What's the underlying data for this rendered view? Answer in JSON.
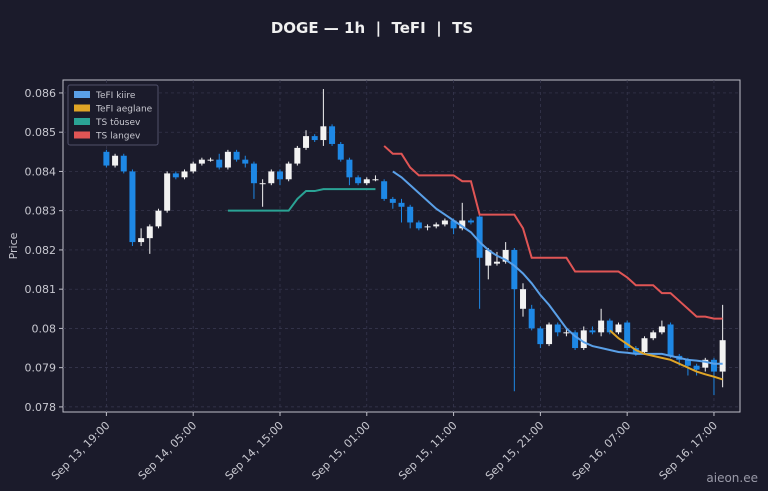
{
  "chart_data": {
    "type": "candlestick",
    "title": "DOGE — 1h  |  TeFI  |  TS",
    "ylabel": "Price",
    "watermark": "aieon.ee",
    "x": [
      "Sep 13, 19:00",
      "Sep 13, 20:00",
      "Sep 13, 21:00",
      "Sep 13, 22:00",
      "Sep 13, 23:00",
      "Sep 14, 00:00",
      "Sep 14, 01:00",
      "Sep 14, 02:00",
      "Sep 14, 03:00",
      "Sep 14, 04:00",
      "Sep 14, 05:00",
      "Sep 14, 06:00",
      "Sep 14, 07:00",
      "Sep 14, 08:00",
      "Sep 14, 09:00",
      "Sep 14, 10:00",
      "Sep 14, 11:00",
      "Sep 14, 12:00",
      "Sep 14, 13:00",
      "Sep 14, 14:00",
      "Sep 14, 15:00",
      "Sep 14, 16:00",
      "Sep 14, 17:00",
      "Sep 14, 18:00",
      "Sep 14, 19:00",
      "Sep 14, 20:00",
      "Sep 14, 21:00",
      "Sep 14, 22:00",
      "Sep 14, 23:00",
      "Sep 15, 00:00",
      "Sep 15, 01:00",
      "Sep 15, 02:00",
      "Sep 15, 03:00",
      "Sep 15, 04:00",
      "Sep 15, 05:00",
      "Sep 15, 06:00",
      "Sep 15, 07:00",
      "Sep 15, 08:00",
      "Sep 15, 09:00",
      "Sep 15, 10:00",
      "Sep 15, 11:00",
      "Sep 15, 12:00",
      "Sep 15, 13:00",
      "Sep 15, 14:00",
      "Sep 15, 15:00",
      "Sep 15, 16:00",
      "Sep 15, 17:00",
      "Sep 15, 18:00",
      "Sep 15, 19:00",
      "Sep 15, 20:00",
      "Sep 15, 21:00",
      "Sep 15, 22:00",
      "Sep 15, 23:00",
      "Sep 16, 00:00",
      "Sep 16, 01:00",
      "Sep 16, 02:00",
      "Sep 16, 03:00",
      "Sep 16, 04:00",
      "Sep 16, 05:00",
      "Sep 16, 06:00",
      "Sep 16, 07:00",
      "Sep 16, 08:00",
      "Sep 16, 09:00",
      "Sep 16, 10:00",
      "Sep 16, 11:00",
      "Sep 16, 12:00",
      "Sep 16, 13:00",
      "Sep 16, 14:00",
      "Sep 16, 15:00",
      "Sep 16, 16:00",
      "Sep 16, 17:00",
      "Sep 16, 18:00"
    ],
    "open": [
      0.0845,
      0.08415,
      0.0844,
      0.084,
      0.0822,
      0.0823,
      0.0826,
      0.083,
      0.08395,
      0.08385,
      0.084,
      0.0842,
      0.0843,
      0.0843,
      0.0841,
      0.0845,
      0.0843,
      0.0842,
      0.0837,
      0.0837,
      0.084,
      0.0838,
      0.0842,
      0.0846,
      0.0849,
      0.0848,
      0.08515,
      0.0847,
      0.0843,
      0.08385,
      0.0837,
      0.0838,
      0.08375,
      0.0833,
      0.0832,
      0.0831,
      0.0827,
      0.0826,
      0.0826,
      0.08265,
      0.08275,
      0.08255,
      0.08275,
      0.08285,
      0.0816,
      0.08165,
      0.0817,
      0.082,
      0.0805,
      0.0805,
      0.08,
      0.0796,
      0.0801,
      0.0799,
      0.0799,
      0.0795,
      0.07995,
      0.0799,
      0.0802,
      0.0799,
      0.08015,
      0.0795,
      0.0794,
      0.07975,
      0.0799,
      0.0801,
      0.0793,
      0.0792,
      0.07905,
      0.079,
      0.0792,
      0.0789
    ],
    "high": [
      0.08455,
      0.08445,
      0.08445,
      0.08405,
      0.08255,
      0.08265,
      0.08305,
      0.084,
      0.084,
      0.08405,
      0.08425,
      0.08435,
      0.08435,
      0.08445,
      0.08455,
      0.08455,
      0.0844,
      0.08425,
      0.0838,
      0.08405,
      0.08405,
      0.08425,
      0.08465,
      0.08505,
      0.08495,
      0.0861,
      0.0852,
      0.08475,
      0.08435,
      0.0839,
      0.08385,
      0.0839,
      0.0838,
      0.08335,
      0.0833,
      0.08315,
      0.08275,
      0.08265,
      0.0827,
      0.0828,
      0.0828,
      0.0832,
      0.0828,
      0.0829,
      0.08205,
      0.08195,
      0.0822,
      0.08205,
      0.08115,
      0.0806,
      0.08005,
      0.08015,
      0.08015,
      0.08,
      0.07995,
      0.08005,
      0.08005,
      0.0805,
      0.08025,
      0.08015,
      0.0802,
      0.07955,
      0.0798,
      0.07995,
      0.0802,
      0.08015,
      0.07935,
      0.07925,
      0.0791,
      0.07925,
      0.07925,
      0.0806
    ],
    "low": [
      0.0841,
      0.0841,
      0.08395,
      0.0821,
      0.0821,
      0.0819,
      0.08255,
      0.08295,
      0.0838,
      0.0838,
      0.08395,
      0.08415,
      0.08425,
      0.08405,
      0.08405,
      0.08425,
      0.0841,
      0.0833,
      0.0831,
      0.08365,
      0.08365,
      0.08375,
      0.08415,
      0.08455,
      0.08475,
      0.08465,
      0.08465,
      0.08425,
      0.08365,
      0.08365,
      0.08365,
      0.08375,
      0.08325,
      0.08305,
      0.0827,
      0.08255,
      0.0825,
      0.0825,
      0.08255,
      0.0826,
      0.0824,
      0.0825,
      0.08265,
      0.0805,
      0.08125,
      0.0816,
      0.08165,
      0.0784,
      0.0803,
      0.07995,
      0.0795,
      0.07955,
      0.0798,
      0.0798,
      0.07945,
      0.07945,
      0.07985,
      0.0798,
      0.07985,
      0.07985,
      0.07945,
      0.0793,
      0.07935,
      0.0797,
      0.07985,
      0.07925,
      0.07905,
      0.0788,
      0.0788,
      0.0789,
      0.0783,
      0.0785
    ],
    "close": [
      0.08415,
      0.0844,
      0.084,
      0.0822,
      0.0823,
      0.0826,
      0.083,
      0.08395,
      0.08385,
      0.084,
      0.0842,
      0.0843,
      0.0843,
      0.0841,
      0.0845,
      0.0843,
      0.0842,
      0.0837,
      0.0837,
      0.084,
      0.0838,
      0.0842,
      0.0846,
      0.0849,
      0.0848,
      0.08515,
      0.0847,
      0.0843,
      0.08385,
      0.0837,
      0.0838,
      0.0838,
      0.0833,
      0.0832,
      0.0831,
      0.0827,
      0.08255,
      0.0826,
      0.08265,
      0.08275,
      0.08255,
      0.08275,
      0.0827,
      0.0818,
      0.082,
      0.0817,
      0.082,
      0.081,
      0.081,
      0.08,
      0.0796,
      0.0801,
      0.0799,
      0.0799,
      0.0795,
      0.07995,
      0.0799,
      0.0802,
      0.0799,
      0.0801,
      0.0795,
      0.07935,
      0.07975,
      0.0799,
      0.08005,
      0.0793,
      0.0792,
      0.07905,
      0.07895,
      0.0792,
      0.0789,
      0.0797
    ],
    "up_color": "#f2f2f2",
    "down_color": "#1e88e5",
    "series": [
      {
        "name": "TeFI kiire",
        "color": "#5aa0e8",
        "values": [
          null,
          null,
          null,
          null,
          null,
          null,
          null,
          null,
          null,
          null,
          null,
          null,
          null,
          null,
          null,
          null,
          null,
          null,
          null,
          null,
          null,
          null,
          null,
          null,
          null,
          null,
          null,
          null,
          null,
          null,
          null,
          null,
          null,
          0.084,
          0.08385,
          0.08365,
          0.08345,
          0.08325,
          0.08305,
          0.0829,
          0.08275,
          0.0826,
          0.08245,
          0.0822,
          0.082,
          0.08185,
          0.08175,
          0.0816,
          0.0814,
          0.08115,
          0.08085,
          0.0806,
          0.0803,
          0.08,
          0.0798,
          0.07965,
          0.07955,
          0.0795,
          0.07945,
          0.0794,
          0.07938,
          0.07935,
          0.07935,
          0.07935,
          0.07935,
          0.0793,
          0.07925,
          0.0792,
          0.07918,
          0.07915,
          0.0791,
          0.0791
        ]
      },
      {
        "name": "TeFI aeglane",
        "color": "#e0a526",
        "values": [
          null,
          null,
          null,
          null,
          null,
          null,
          null,
          null,
          null,
          null,
          null,
          null,
          null,
          null,
          null,
          null,
          null,
          null,
          null,
          null,
          null,
          null,
          null,
          null,
          null,
          null,
          null,
          null,
          null,
          null,
          null,
          null,
          null,
          null,
          null,
          null,
          null,
          null,
          null,
          null,
          null,
          null,
          null,
          null,
          null,
          null,
          null,
          null,
          null,
          null,
          null,
          null,
          null,
          null,
          null,
          null,
          null,
          null,
          0.07995,
          0.07975,
          0.0796,
          0.07945,
          0.07935,
          0.0793,
          0.07925,
          0.0792,
          0.0791,
          0.079,
          0.0789,
          0.07883,
          0.07877,
          0.0787
        ]
      },
      {
        "name": "TS tõusev",
        "color": "#2aa395",
        "values": [
          null,
          null,
          null,
          null,
          null,
          null,
          null,
          null,
          null,
          null,
          null,
          null,
          null,
          null,
          0.083,
          0.083,
          0.083,
          0.083,
          0.083,
          0.083,
          0.083,
          0.083,
          0.0833,
          0.0835,
          0.0835,
          0.08355,
          0.08355,
          0.08355,
          0.08355,
          0.08355,
          0.08355,
          0.08355,
          null,
          null,
          null,
          null,
          null,
          null,
          null,
          null,
          null,
          null,
          null,
          null,
          null,
          null,
          null,
          null,
          null,
          null,
          null,
          null,
          null,
          null,
          null,
          null,
          null,
          null,
          null,
          null,
          null,
          null,
          null,
          null,
          null,
          null,
          null,
          null,
          null,
          null,
          null,
          null
        ]
      },
      {
        "name": "TS langev",
        "color": "#e05555",
        "values": [
          null,
          null,
          null,
          null,
          null,
          null,
          null,
          null,
          null,
          null,
          null,
          null,
          null,
          null,
          null,
          null,
          null,
          null,
          null,
          null,
          null,
          null,
          null,
          null,
          null,
          null,
          null,
          null,
          null,
          null,
          null,
          null,
          0.08465,
          0.08445,
          0.08445,
          0.0841,
          0.0839,
          0.0839,
          0.0839,
          0.0839,
          0.0839,
          0.08375,
          0.08375,
          0.0829,
          0.0829,
          0.0829,
          0.0829,
          0.0829,
          0.08255,
          0.0818,
          0.0818,
          0.0818,
          0.0818,
          0.0818,
          0.08145,
          0.08145,
          0.08145,
          0.08145,
          0.08145,
          0.08145,
          0.0813,
          0.0811,
          0.0811,
          0.0811,
          0.0809,
          0.0809,
          0.0807,
          0.0805,
          0.0803,
          0.0803,
          0.08025,
          0.08025
        ]
      }
    ],
    "xlim": [
      "Sep 13, 14:00",
      "Sep 16, 20:00"
    ],
    "xticks": [
      "Sep 13, 19:00",
      "Sep 14, 05:00",
      "Sep 14, 15:00",
      "Sep 15, 01:00",
      "Sep 15, 11:00",
      "Sep 15, 21:00",
      "Sep 16, 07:00",
      "Sep 16, 17:00"
    ],
    "ylim": [
      0.07787,
      0.08633
    ],
    "yticks": [
      0.078,
      0.079,
      0.08,
      0.081,
      0.082,
      0.083,
      0.084,
      0.085,
      0.086
    ],
    "grid": true,
    "legend_loc": "upper left"
  }
}
